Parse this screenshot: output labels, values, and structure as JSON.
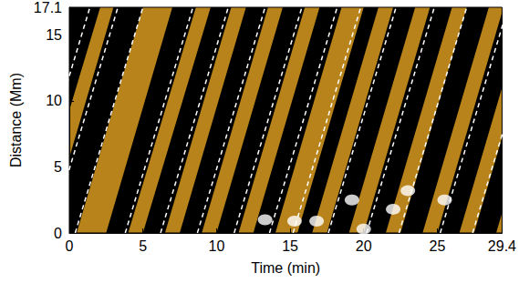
{
  "chart_data": {
    "type": "contour",
    "xlabel": "Time (min)",
    "ylabel": "Distance (Mm)",
    "xlim": [
      0,
      29.4
    ],
    "ylim": [
      0,
      17.1
    ],
    "xticks": [
      0,
      5,
      10,
      15,
      20,
      25
    ],
    "yticks": [
      0,
      5,
      10,
      15
    ],
    "color": "#b8831a",
    "series": [
      {
        "type": "band",
        "color": "#000000",
        "y_bottom": 0,
        "y_top": 17.1,
        "bands": [
          {
            "x_bottom": [
              -4.5,
              -2.5
            ],
            "x_top": [
              0.1,
              2.1
            ]
          },
          {
            "x_bottom": [
              -1.5,
              0.5
            ],
            "x_top": [
              3.0,
              5.0
            ]
          },
          {
            "x_bottom": [
              2.5,
              4.0
            ],
            "x_top": [
              7.0,
              8.6
            ]
          },
          {
            "x_bottom": [
              5.0,
              6.5
            ],
            "x_top": [
              9.6,
              11.0
            ]
          },
          {
            "x_bottom": [
              7.5,
              9.0
            ],
            "x_top": [
              12.0,
              13.5
            ]
          },
          {
            "x_bottom": [
              10.0,
              11.5
            ],
            "x_top": [
              14.5,
              16.0
            ]
          },
          {
            "x_bottom": [
              12.5,
              14.0
            ],
            "x_top": [
              17.0,
              18.5
            ]
          },
          {
            "x_bottom": [
              15.5,
              16.5
            ],
            "x_top": [
              20.0,
              21.0
            ]
          },
          {
            "x_bottom": [
              17.5,
              19.0
            ],
            "x_top": [
              22.0,
              23.5
            ]
          },
          {
            "x_bottom": [
              20.0,
              21.5
            ],
            "x_top": [
              24.5,
              26.0
            ]
          },
          {
            "x_bottom": [
              22.5,
              24.0
            ],
            "x_top": [
              27.0,
              28.5
            ]
          },
          {
            "x_bottom": [
              25.0,
              26.5
            ],
            "x_top": [
              29.5,
              31.0
            ]
          },
          {
            "x_bottom": [
              27.5,
              29.0
            ],
            "x_top": [
              32.0,
              33.5
            ]
          }
        ]
      },
      {
        "type": "blob",
        "color": "#ffffff",
        "x": [
          15.3,
          16.8,
          19.2,
          20.0,
          22.0,
          23.0,
          25.5,
          13.3
        ],
        "y": [
          0.9,
          0.9,
          2.5,
          0.3,
          1.8,
          3.2,
          2.5,
          1.0
        ]
      },
      {
        "type": "line",
        "color": "#ffffff",
        "line_style": "dashed",
        "lines": [
          {
            "x": [
              -3.2,
              1.4
            ],
            "y": [
              0,
              17.1
            ]
          },
          {
            "x": [
              -1.3,
              3.3
            ],
            "y": [
              0,
              17.1
            ]
          },
          {
            "x": [
              0.4,
              5.0
            ],
            "y": [
              0,
              17.1
            ]
          },
          {
            "x": [
              3.8,
              8.4
            ],
            "y": [
              0,
              17.1
            ]
          },
          {
            "x": [
              6.2,
              10.8
            ],
            "y": [
              0,
              17.1
            ]
          },
          {
            "x": [
              8.7,
              13.3
            ],
            "y": [
              0,
              17.1
            ]
          },
          {
            "x": [
              11.2,
              15.8
            ],
            "y": [
              0,
              17.1
            ]
          },
          {
            "x": [
              13.6,
              18.2
            ],
            "y": [
              0,
              17.1
            ]
          },
          {
            "x": [
              15.2,
              19.8
            ],
            "y": [
              0,
              17.1
            ]
          },
          {
            "x": [
              17.6,
              22.2
            ],
            "y": [
              0,
              17.1
            ]
          },
          {
            "x": [
              20.2,
              24.8
            ],
            "y": [
              0,
              17.1
            ]
          },
          {
            "x": [
              22.4,
              27.0
            ],
            "y": [
              0,
              17.1
            ]
          },
          {
            "x": [
              25.2,
              29.8
            ],
            "y": [
              0,
              17.1
            ]
          },
          {
            "x": [
              27.4,
              32.0
            ],
            "y": [
              0,
              17.1
            ]
          }
        ]
      }
    ]
  }
}
